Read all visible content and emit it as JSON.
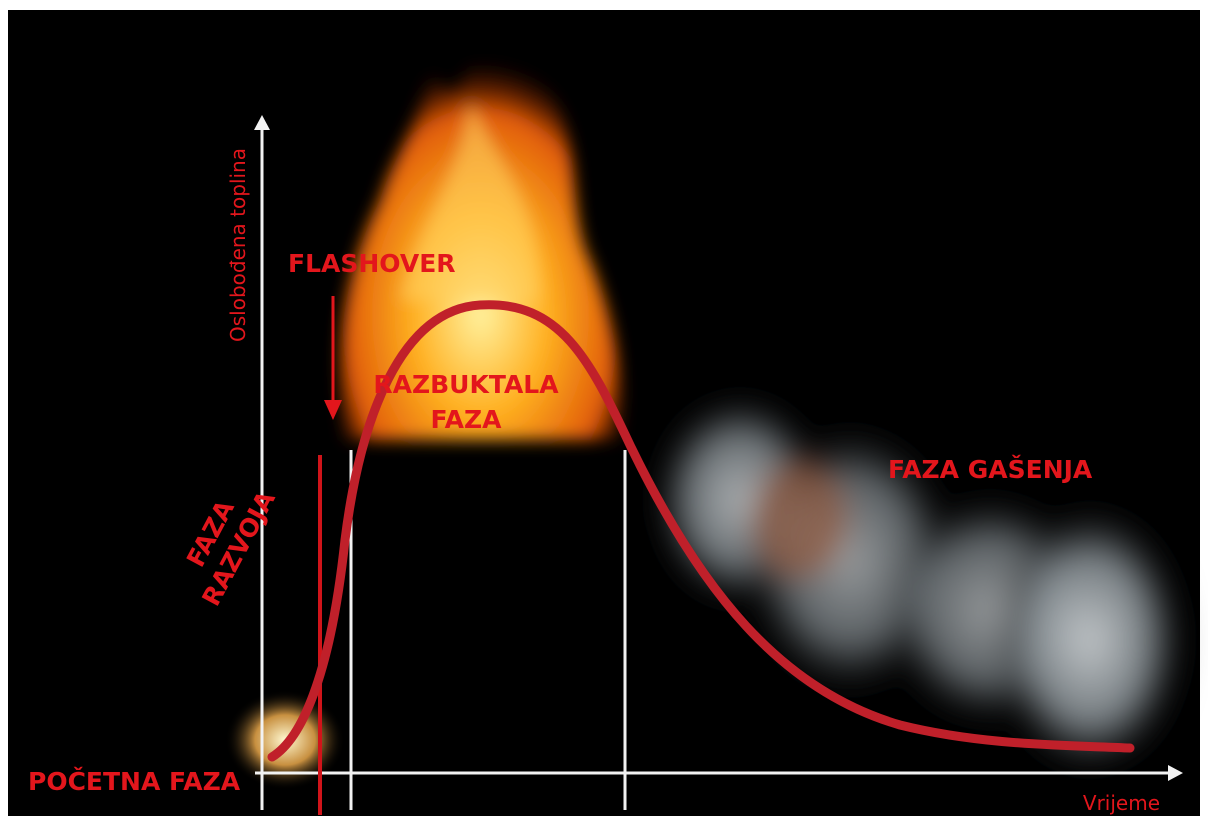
{
  "axes": {
    "y_label": "Oslobođena toplina",
    "x_label": "Vrijeme"
  },
  "phases": {
    "start": "POČETNA FAZA",
    "growth": [
      "FAZA",
      "RAZVOJA"
    ],
    "flashover": "FLASHOVER",
    "full": [
      "RAZBUKTALA",
      "FAZA"
    ],
    "decay": "FAZA GAŠENJA"
  }
}
